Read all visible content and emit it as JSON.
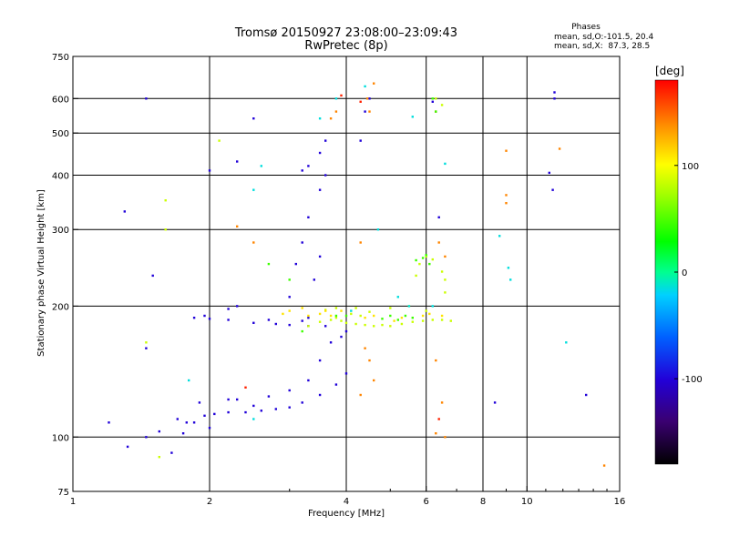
{
  "chart_data": {
    "type": "scatter",
    "title": "Tromsø 20150927 23:08:00–23:09:43",
    "subtitle": "RwPretec (8p)",
    "stats": {
      "header": "Phases",
      "line1": "mean, sd,O:-101.5, 20.4",
      "line2": "mean, sd,X:  87.3, 28.5"
    },
    "xlabel": "Frequency [MHz]",
    "ylabel": "Stationary phase Virtual Height [km]",
    "xscale": "log",
    "yscale": "log",
    "xlim": [
      1,
      16
    ],
    "ylim": [
      75,
      750
    ],
    "xticks": [
      1,
      2,
      4,
      6,
      8,
      10,
      16
    ],
    "yticks": [
      75,
      100,
      200,
      300,
      400,
      500,
      600,
      750
    ],
    "x_gridlines": [
      2,
      4,
      6,
      8,
      10
    ],
    "y_gridlines": [
      100,
      200,
      300,
      400,
      500,
      600
    ],
    "colorbar": {
      "label": "[deg]",
      "range": [
        -180,
        180
      ],
      "ticks": [
        100,
        0,
        -100
      ]
    },
    "series": [
      {
        "points": [
          [
            1.2,
            108
          ],
          [
            1.32,
            95
          ],
          [
            1.45,
            100
          ],
          [
            1.55,
            103
          ],
          [
            1.7,
            110
          ],
          [
            1.78,
            108
          ],
          [
            1.85,
            108
          ],
          [
            1.95,
            112
          ],
          [
            2.05,
            113
          ],
          [
            2.2,
            114
          ],
          [
            2.4,
            114
          ],
          [
            2.6,
            115
          ],
          [
            2.8,
            116
          ],
          [
            3.0,
            117
          ],
          [
            3.2,
            120
          ],
          [
            3.5,
            125
          ],
          [
            3.8,
            132
          ],
          [
            4.0,
            140
          ],
          [
            1.9,
            120
          ],
          [
            2.2,
            122
          ],
          [
            2.5,
            118
          ],
          [
            2.7,
            124
          ],
          [
            3.0,
            128
          ],
          [
            3.3,
            135
          ],
          [
            3.5,
            150
          ],
          [
            3.7,
            165
          ],
          [
            3.9,
            170
          ],
          [
            4.0,
            175
          ],
          [
            1.85,
            188
          ],
          [
            2.0,
            187
          ],
          [
            2.2,
            186
          ],
          [
            2.5,
            183
          ],
          [
            2.8,
            182
          ],
          [
            3.0,
            181
          ],
          [
            3.3,
            180
          ],
          [
            3.6,
            180
          ],
          [
            3.0,
            210
          ],
          [
            3.1,
            250
          ],
          [
            3.2,
            280
          ],
          [
            3.4,
            230
          ],
          [
            3.5,
            260
          ],
          [
            3.3,
            320
          ],
          [
            3.5,
            370
          ],
          [
            3.6,
            400
          ],
          [
            3.2,
            410
          ],
          [
            3.3,
            420
          ],
          [
            3.5,
            450
          ],
          [
            3.6,
            480
          ],
          [
            2.0,
            410
          ],
          [
            2.3,
            430
          ],
          [
            2.5,
            540
          ],
          [
            4.4,
            560
          ],
          [
            4.5,
            600
          ],
          [
            4.3,
            480
          ],
          [
            6.2,
            590
          ],
          [
            6.4,
            320
          ],
          [
            11.5,
            620
          ],
          [
            11.5,
            600
          ],
          [
            11.4,
            370
          ],
          [
            11.2,
            405
          ],
          [
            13.5,
            125
          ],
          [
            8.5,
            120
          ],
          [
            1.5,
            235
          ],
          [
            1.3,
            330
          ],
          [
            1.45,
            600
          ],
          [
            1.45,
            160
          ],
          [
            2.3,
            200
          ],
          [
            1.95,
            190
          ],
          [
            2.2,
            197
          ],
          [
            2.7,
            186
          ],
          [
            3.2,
            185
          ],
          [
            3.3,
            188
          ],
          [
            2.3,
            122
          ],
          [
            2.0,
            105
          ],
          [
            1.75,
            102
          ],
          [
            1.65,
            92
          ]
        ],
        "phase": -100
      },
      {
        "points": [
          [
            3.3,
            180
          ],
          [
            3.5,
            184
          ],
          [
            3.7,
            186
          ],
          [
            3.8,
            188
          ],
          [
            3.9,
            185
          ],
          [
            4.0,
            183
          ],
          [
            4.2,
            182
          ],
          [
            4.4,
            181
          ],
          [
            4.6,
            180
          ],
          [
            4.8,
            181
          ],
          [
            5.0,
            180
          ],
          [
            5.3,
            182
          ],
          [
            5.6,
            184
          ],
          [
            5.9,
            185
          ],
          [
            6.2,
            186
          ],
          [
            6.5,
            186
          ],
          [
            6.8,
            185
          ],
          [
            4.1,
            192
          ],
          [
            4.3,
            190
          ],
          [
            4.5,
            194
          ],
          [
            5.0,
            198
          ],
          [
            5.5,
            200
          ],
          [
            6.0,
            195
          ],
          [
            3.6,
            196
          ],
          [
            3.8,
            198
          ],
          [
            4.2,
            198
          ],
          [
            5.7,
            235
          ],
          [
            5.8,
            250
          ],
          [
            6.0,
            260
          ],
          [
            6.2,
            256
          ],
          [
            6.5,
            240
          ],
          [
            6.6,
            230
          ],
          [
            6.6,
            215
          ],
          [
            6.3,
            600
          ],
          [
            6.5,
            580
          ],
          [
            1.6,
            350
          ],
          [
            1.6,
            300
          ],
          [
            1.55,
            90
          ],
          [
            2.1,
            480
          ],
          [
            1.45,
            165
          ]
        ],
        "phase": 85
      },
      {
        "points": [
          [
            3.3,
            190
          ],
          [
            3.5,
            192
          ],
          [
            3.6,
            195
          ],
          [
            3.7,
            190
          ],
          [
            3.9,
            195
          ],
          [
            4.4,
            188
          ],
          [
            4.6,
            190
          ],
          [
            5.1,
            185
          ],
          [
            5.3,
            188
          ],
          [
            5.9,
            190
          ],
          [
            6.1,
            192
          ],
          [
            2.9,
            192
          ],
          [
            3.0,
            195
          ],
          [
            3.2,
            198
          ],
          [
            6.5,
            190
          ]
        ],
        "phase": 110
      },
      {
        "points": [
          [
            4.5,
            560
          ],
          [
            4.6,
            650
          ],
          [
            4.45,
            600
          ],
          [
            4.3,
            280
          ],
          [
            4.4,
            160
          ],
          [
            4.5,
            150
          ],
          [
            4.6,
            135
          ],
          [
            4.3,
            125
          ],
          [
            6.5,
            120
          ],
          [
            6.3,
            150
          ],
          [
            6.4,
            280
          ],
          [
            6.6,
            260
          ],
          [
            9.0,
            455
          ],
          [
            9.0,
            360
          ],
          [
            9.0,
            345
          ],
          [
            11.8,
            460
          ],
          [
            14.8,
            86
          ],
          [
            6.6,
            100
          ],
          [
            6.3,
            102
          ],
          [
            3.7,
            540
          ],
          [
            3.8,
            560
          ],
          [
            2.5,
            280
          ],
          [
            2.3,
            305
          ]
        ],
        "phase": 140
      },
      {
        "points": [
          [
            6.4,
            110
          ],
          [
            3.9,
            610
          ],
          [
            4.3,
            590
          ],
          [
            2.4,
            130
          ],
          [
            6.3,
            560
          ]
        ],
        "phase": 170
      },
      {
        "points": [
          [
            4.4,
            640
          ],
          [
            3.8,
            600
          ],
          [
            2.6,
            420
          ],
          [
            2.5,
            370
          ],
          [
            6.6,
            425
          ],
          [
            5.6,
            545
          ],
          [
            3.5,
            540
          ],
          [
            2.5,
            110
          ],
          [
            1.8,
            135
          ],
          [
            6.2,
            200
          ],
          [
            8.7,
            290
          ],
          [
            9.1,
            245
          ],
          [
            9.2,
            230
          ],
          [
            4.7,
            300
          ],
          [
            4.1,
            195
          ],
          [
            12.2,
            165
          ],
          [
            5.5,
            200
          ],
          [
            5.2,
            210
          ]
        ],
        "phase": -15
      },
      {
        "points": [
          [
            6.3,
            560
          ],
          [
            6.2,
            600
          ],
          [
            5.7,
            255
          ],
          [
            5.9,
            258
          ],
          [
            6.0,
            262
          ],
          [
            6.1,
            250
          ],
          [
            2.7,
            250
          ],
          [
            3.0,
            230
          ],
          [
            4.8,
            187
          ],
          [
            5.0,
            190
          ],
          [
            5.2,
            186
          ],
          [
            5.4,
            190
          ],
          [
            5.6,
            188
          ],
          [
            3.2,
            175
          ],
          [
            3.8,
            190
          ],
          [
            4.0,
            190
          ]
        ],
        "phase": 45
      }
    ]
  }
}
